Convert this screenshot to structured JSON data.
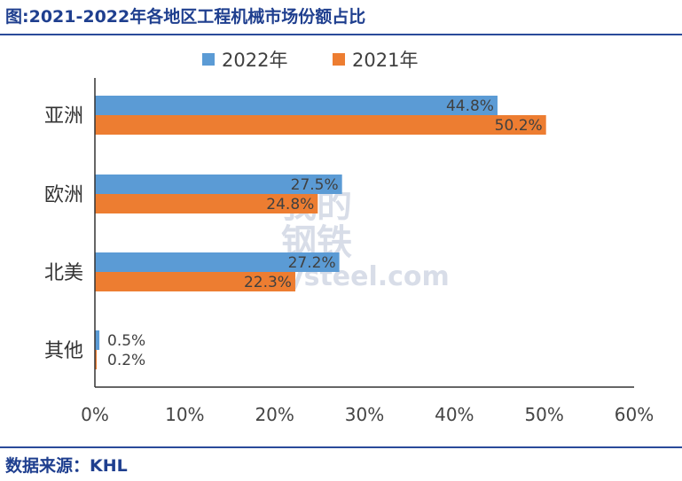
{
  "title": "图:2021-2022年各地区工程机械市场份额占比",
  "source": "数据来源：KHL",
  "watermark": {
    "cn_1": "我的",
    "cn_2": "钢铁",
    "en": "Mysteel.com"
  },
  "colors": {
    "s2022": "#5b9bd5",
    "s2021": "#ed7d31",
    "axis": "#333333",
    "text": "#1f3f8f"
  },
  "chart_data": {
    "type": "bar",
    "orientation": "horizontal",
    "categories": [
      "亚洲",
      "欧洲",
      "北美",
      "其他"
    ],
    "series": [
      {
        "name": "2022年",
        "values": [
          44.8,
          27.5,
          27.2,
          0.5
        ],
        "labels": [
          "44.8%",
          "27.5%",
          "27.2%",
          "0.5%"
        ]
      },
      {
        "name": "2021年",
        "values": [
          50.2,
          24.8,
          22.3,
          0.2
        ],
        "labels": [
          "50.2%",
          "24.8%",
          "22.3%",
          "0.2%"
        ]
      }
    ],
    "xlim": [
      0,
      60
    ],
    "xticks": [
      "0%",
      "10%",
      "20%",
      "30%",
      "40%",
      "50%",
      "60%"
    ],
    "legend": "top-center",
    "grid": false
  }
}
